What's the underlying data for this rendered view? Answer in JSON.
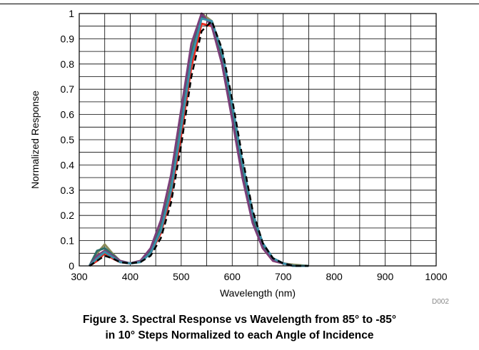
{
  "caption": {
    "line1": "Figure 3. Spectral Response vs Wavelength from 85° to -85°",
    "line2": "in 10° Steps Normalized to each Angle of Incidence"
  },
  "doc_id": "D002",
  "chart_data": {
    "type": "line",
    "title": "",
    "xlabel": "Wavelength (nm)",
    "ylabel": "Normalized Response",
    "xlim": [
      300,
      1000
    ],
    "ylim": [
      0,
      1
    ],
    "xticks": [
      300,
      400,
      500,
      600,
      700,
      800,
      900,
      1000
    ],
    "yticks": [
      0,
      0.1,
      0.2,
      0.3,
      0.4,
      0.5,
      0.6,
      0.7,
      0.8,
      0.9,
      1
    ],
    "ytick_labels": [
      "0",
      "0.1",
      "0.2",
      "0.3",
      "0.4",
      "0.5",
      "0.6",
      "0.7",
      "0.8",
      "0.9",
      "1"
    ],
    "grid": true,
    "x": [
      320,
      335,
      350,
      365,
      380,
      400,
      420,
      440,
      460,
      480,
      500,
      520,
      540,
      560,
      580,
      600,
      620,
      640,
      660,
      680,
      700,
      720,
      750
    ],
    "series": [
      {
        "color": "#8b8b5a",
        "values": [
          0,
          0.05,
          0.085,
          0.05,
          0.02,
          0.01,
          0.02,
          0.06,
          0.16,
          0.33,
          0.58,
          0.86,
          1.0,
          0.97,
          0.84,
          0.63,
          0.4,
          0.2,
          0.08,
          0.03,
          0.01,
          0.005,
          0
        ]
      },
      {
        "color": "#e8271c",
        "values": [
          0,
          0.02,
          0.05,
          0.03,
          0.015,
          0.01,
          0.02,
          0.05,
          0.13,
          0.28,
          0.52,
          0.79,
          0.96,
          0.95,
          0.82,
          0.6,
          0.37,
          0.18,
          0.07,
          0.02,
          0.01,
          0,
          0
        ]
      },
      {
        "color": "#2e6e68",
        "values": [
          0,
          0.06,
          0.07,
          0.045,
          0.02,
          0.01,
          0.02,
          0.06,
          0.15,
          0.31,
          0.56,
          0.84,
          0.99,
          0.96,
          0.83,
          0.62,
          0.39,
          0.19,
          0.08,
          0.03,
          0.01,
          0,
          0
        ]
      },
      {
        "color": "#7b3f7a",
        "values": [
          0,
          0.04,
          0.06,
          0.04,
          0.02,
          0.01,
          0.02,
          0.07,
          0.18,
          0.36,
          0.62,
          0.88,
          1.0,
          0.95,
          0.8,
          0.58,
          0.35,
          0.17,
          0.07,
          0.02,
          0.01,
          0,
          0
        ]
      },
      {
        "color": "#3a8fa8",
        "values": [
          0,
          0.03,
          0.055,
          0.035,
          0.015,
          0.01,
          0.015,
          0.05,
          0.14,
          0.3,
          0.55,
          0.82,
          0.98,
          0.97,
          0.85,
          0.64,
          0.41,
          0.21,
          0.09,
          0.03,
          0.01,
          0,
          0
        ]
      },
      {
        "color": "#000000",
        "dashed": true,
        "values": [
          0,
          0.02,
          0.04,
          0.03,
          0.015,
          0.01,
          0.015,
          0.04,
          0.11,
          0.25,
          0.48,
          0.75,
          0.93,
          0.97,
          0.86,
          0.66,
          0.43,
          0.22,
          0.09,
          0.03,
          0.01,
          0,
          0
        ]
      }
    ]
  }
}
